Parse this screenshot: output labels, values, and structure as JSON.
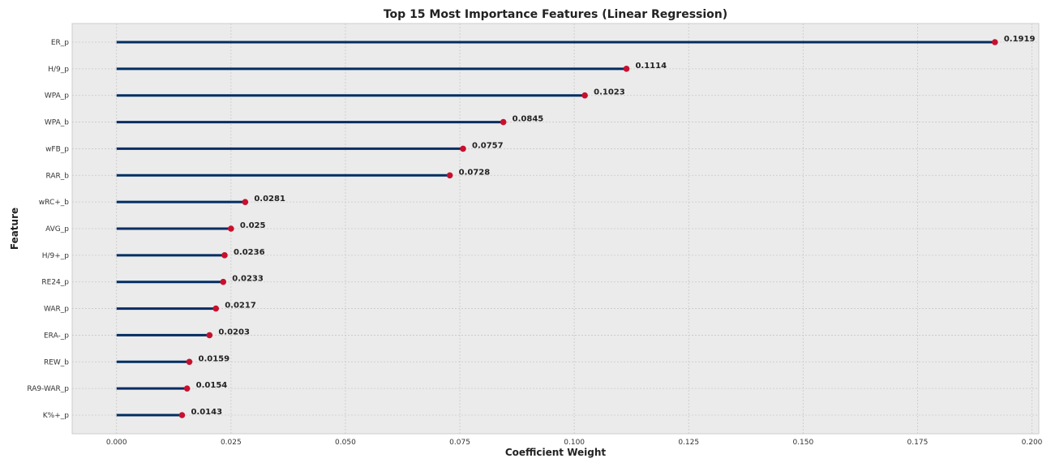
{
  "chart_data": {
    "type": "lollipop",
    "title": "Top 15 Most Importance Features (Linear Regression)",
    "xlabel": "Coefficient Weight",
    "ylabel": "Feature",
    "xlim": [
      -0.0097,
      0.2015
    ],
    "xticks": [
      "0.000",
      "0.025",
      "0.050",
      "0.075",
      "0.100",
      "0.125",
      "0.150",
      "0.175",
      "0.200"
    ],
    "xtick_values": [
      0,
      0.025,
      0.05,
      0.075,
      0.1,
      0.125,
      0.15,
      0.175,
      0.2
    ],
    "grid": true,
    "colors": {
      "stem": "#002d62",
      "marker": "#c8102e",
      "background": "#ebebeb",
      "grid": "#c8c8c8"
    },
    "features": [
      "ER_p",
      "H/9_p",
      "WPA_p",
      "WPA_b",
      "wFB_p",
      "RAR_b",
      "wRC+_b",
      "AVG_p",
      "H/9+_p",
      "RE24_p",
      "WAR_p",
      "ERA-_p",
      "REW_b",
      "RA9-WAR_p",
      "K%+_p"
    ],
    "values": [
      0.1919,
      0.1114,
      0.1023,
      0.0845,
      0.0757,
      0.0728,
      0.0281,
      0.025,
      0.0236,
      0.0233,
      0.0217,
      0.0203,
      0.0159,
      0.0154,
      0.0143
    ],
    "value_labels": [
      "0.1919",
      "0.1114",
      "0.1023",
      "0.0845",
      "0.0757",
      "0.0728",
      "0.0281",
      "0.025",
      "0.0236",
      "0.0233",
      "0.0217",
      "0.0203",
      "0.0159",
      "0.0154",
      "0.0143"
    ]
  }
}
